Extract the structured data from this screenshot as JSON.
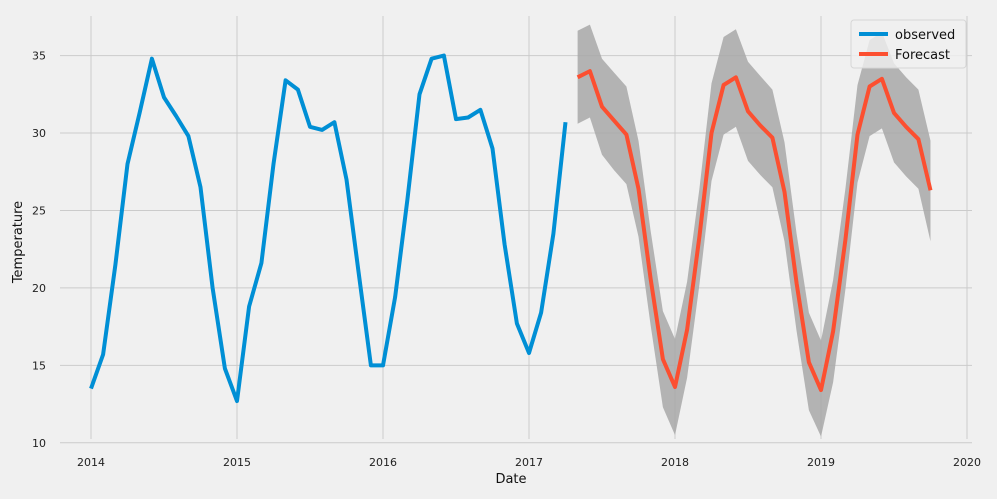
{
  "chart_data": {
    "type": "line",
    "title": "",
    "xlabel": "Date",
    "ylabel": "Temperature",
    "xlim": [
      2014.0,
      2020.0
    ],
    "ylim": [
      9.6,
      38.2
    ],
    "x_ticks": [
      2014,
      2015,
      2016,
      2017,
      2018,
      2019,
      2020
    ],
    "x_tick_labels": [
      "2014",
      "2015",
      "2016",
      "2017",
      "2018",
      "2019",
      "2020"
    ],
    "y_ticks": [
      10,
      15,
      20,
      25,
      30,
      35
    ],
    "y_tick_labels": [
      "10",
      "15",
      "20",
      "25",
      "30",
      "35"
    ],
    "grid": true,
    "legend": {
      "position": "top-right",
      "entries": [
        "observed",
        "Forecast"
      ]
    },
    "colors": {
      "observed": "#008fd5",
      "forecast": "#fc4f30",
      "band": "#a8a8a8"
    },
    "series": [
      {
        "name": "observed",
        "x": [
          2014.0,
          2014.083,
          2014.167,
          2014.25,
          2014.333,
          2014.417,
          2014.5,
          2014.583,
          2014.667,
          2014.75,
          2014.833,
          2014.917,
          2015.0,
          2015.083,
          2015.167,
          2015.25,
          2015.333,
          2015.417,
          2015.5,
          2015.583,
          2015.667,
          2015.75,
          2015.833,
          2015.917,
          2016.0,
          2016.083,
          2016.167,
          2016.25,
          2016.333,
          2016.417,
          2016.5,
          2016.583,
          2016.667,
          2016.75,
          2016.833,
          2016.917,
          2017.0,
          2017.083,
          2017.167,
          2017.25
        ],
        "values": [
          13.5,
          15.7,
          21.5,
          28.0,
          31.3,
          34.8,
          32.3,
          31.1,
          29.8,
          26.5,
          20.0,
          14.8,
          12.7,
          18.8,
          21.6,
          28.0,
          33.4,
          32.8,
          30.4,
          30.2,
          30.7,
          27.0,
          21.0,
          15.0,
          15.0,
          19.4,
          25.7,
          32.5,
          34.8,
          35.0,
          30.9,
          31.0,
          31.5,
          29.0,
          22.8,
          17.7,
          15.8,
          18.4,
          23.5,
          30.7
        ]
      },
      {
        "name": "Forecast",
        "x": [
          2017.333,
          2017.417,
          2017.5,
          2017.583,
          2017.667,
          2017.75,
          2017.833,
          2017.917,
          2018.0,
          2018.083,
          2018.167,
          2018.25,
          2018.333,
          2018.417,
          2018.5,
          2018.583,
          2018.667,
          2018.75,
          2018.833,
          2018.917,
          2019.0,
          2019.083,
          2019.167,
          2019.25,
          2019.333,
          2019.417,
          2019.5,
          2019.583,
          2019.667,
          2019.75
        ],
        "values": [
          33.6,
          34.0,
          31.7,
          30.8,
          29.9,
          26.4,
          20.6,
          15.4,
          13.6,
          17.3,
          23.3,
          30.0,
          33.1,
          33.6,
          31.4,
          30.5,
          29.7,
          26.2,
          20.3,
          15.2,
          13.4,
          17.2,
          23.1,
          29.9,
          33.0,
          33.5,
          31.3,
          30.4,
          29.6,
          26.3
        ],
        "lower": [
          30.6,
          31.0,
          28.6,
          27.6,
          26.7,
          23.3,
          17.6,
          12.3,
          10.5,
          14.2,
          20.2,
          26.9,
          29.9,
          30.4,
          28.2,
          27.3,
          26.5,
          23.0,
          17.2,
          12.1,
          10.4,
          13.9,
          19.9,
          26.8,
          29.8,
          30.3,
          28.1,
          27.2,
          26.4,
          23.0
        ],
        "upper": [
          36.6,
          37.0,
          34.8,
          33.9,
          33.0,
          29.5,
          23.7,
          18.5,
          16.7,
          20.4,
          26.4,
          33.2,
          36.2,
          36.7,
          34.6,
          33.7,
          32.8,
          29.4,
          23.5,
          18.4,
          16.6,
          20.5,
          26.4,
          33.1,
          36.0,
          36.5,
          34.5,
          33.6,
          32.8,
          29.5
        ]
      }
    ]
  }
}
